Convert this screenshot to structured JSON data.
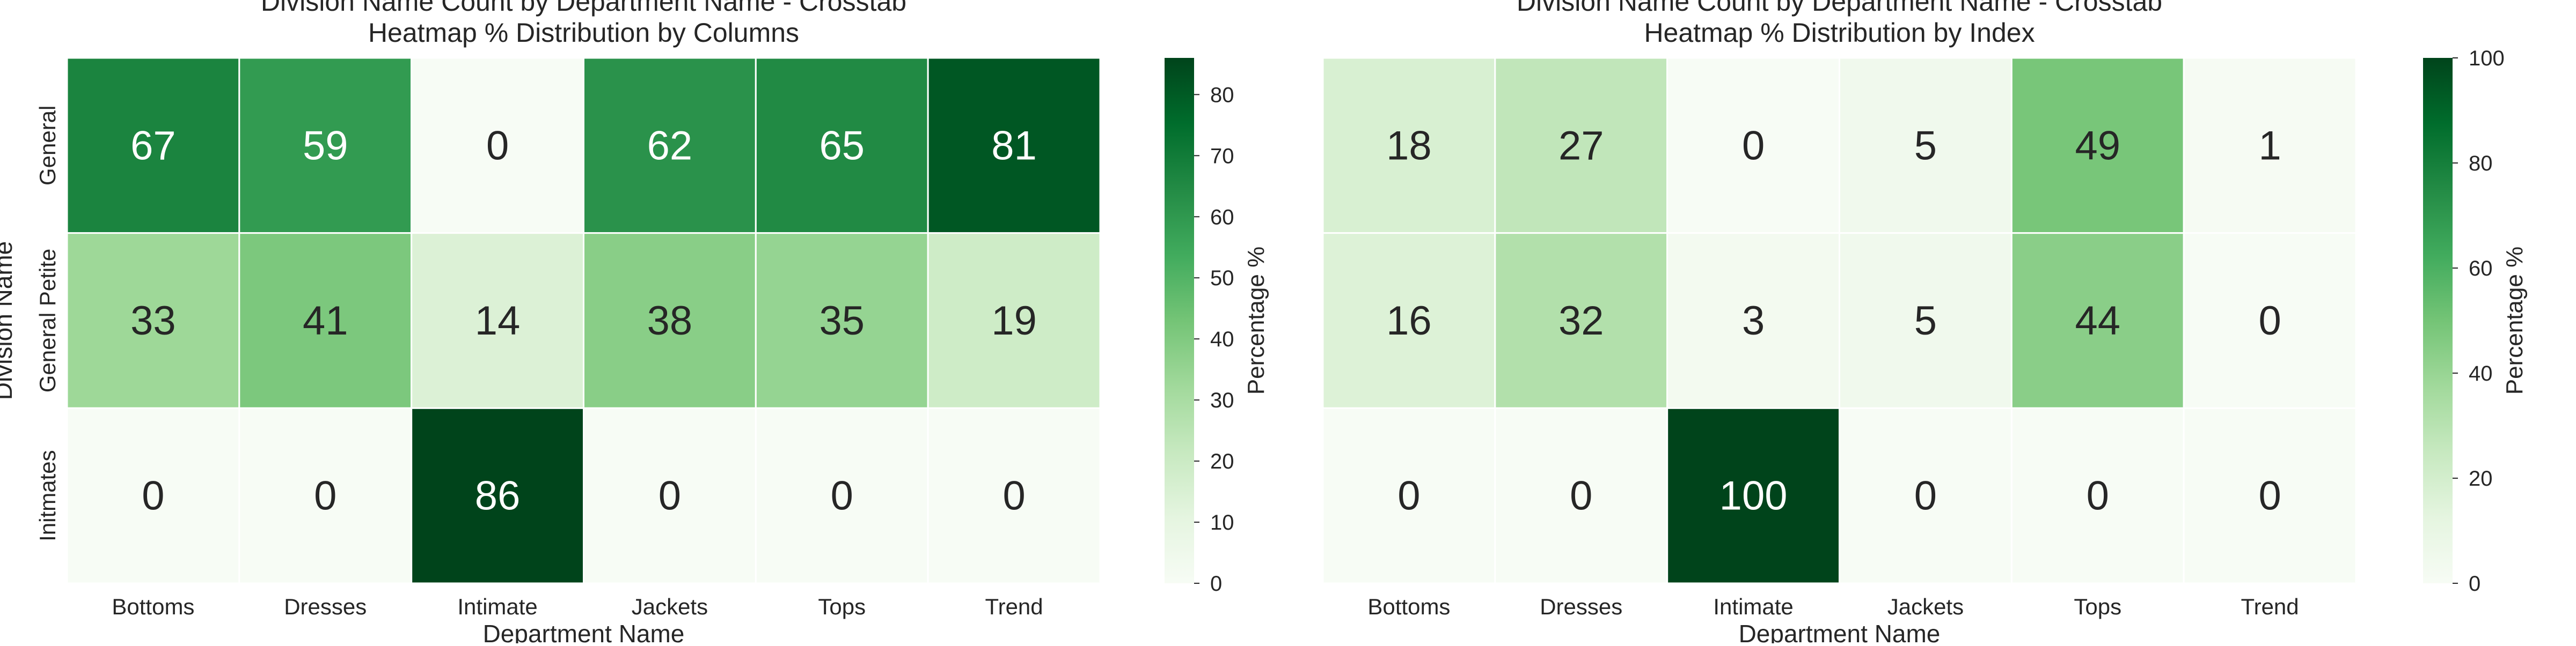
{
  "chart_data": [
    {
      "type": "heatmap",
      "title_line1": "Division Name Count by Department Name - Crosstab",
      "title_line2": "Heatmap % Distribution by Columns",
      "xlabel": "Department Name",
      "ylabel": "Division Name",
      "x_categories": [
        "Bottoms",
        "Dresses",
        "Intimate",
        "Jackets",
        "Tops",
        "Trend"
      ],
      "y_categories": [
        "General",
        "General Petite",
        "Initmates"
      ],
      "values": [
        [
          67,
          59,
          0,
          62,
          65,
          81
        ],
        [
          33,
          41,
          14,
          38,
          35,
          19
        ],
        [
          0,
          0,
          86,
          0,
          0,
          0
        ]
      ],
      "colorbar": {
        "label": "Percentage %",
        "vmin": 0,
        "vmax": 86,
        "ticks": [
          0,
          10,
          20,
          30,
          40,
          50,
          60,
          70,
          80
        ]
      },
      "colormap": [
        "#f7fcf5",
        "#e5f5e0",
        "#c7e9c0",
        "#a1d99b",
        "#74c476",
        "#41ab5d",
        "#238b45",
        "#006d2c",
        "#00441b"
      ]
    },
    {
      "type": "heatmap",
      "title_line1": "Division Name Count by Department Name - Crosstab",
      "title_line2": "Heatmap % Distribution by Index",
      "xlabel": "Department Name",
      "ylabel": "",
      "x_categories": [
        "Bottoms",
        "Dresses",
        "Intimate",
        "Jackets",
        "Tops",
        "Trend"
      ],
      "y_categories": [],
      "values": [
        [
          18,
          27,
          0,
          5,
          49,
          1
        ],
        [
          16,
          32,
          3,
          5,
          44,
          0
        ],
        [
          0,
          0,
          100,
          0,
          0,
          0
        ]
      ],
      "colorbar": {
        "label": "Percentage %",
        "vmin": 0,
        "vmax": 100,
        "ticks": [
          0,
          20,
          40,
          60,
          80,
          100
        ]
      },
      "colormap": [
        "#f7fcf5",
        "#e5f5e0",
        "#c7e9c0",
        "#a1d99b",
        "#74c476",
        "#41ab5d",
        "#238b45",
        "#006d2c",
        "#00441b"
      ]
    }
  ]
}
